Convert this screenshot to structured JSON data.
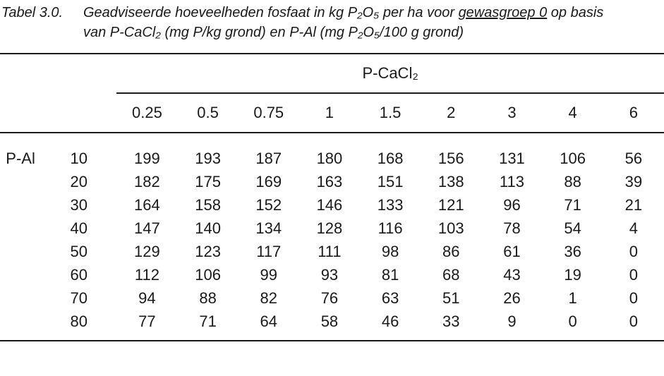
{
  "page": {
    "background_color": "#ffffff",
    "text_color": "#1a1a1a",
    "rule_color": "#1a1a1a"
  },
  "caption": {
    "label": "Tabel 3.0.",
    "line1_before": "Geadviseerde hoeveelheden fosfaat in kg P₂O₅ per ha voor ",
    "line1_underlined": "gewasgroep 0",
    "line1_after": " op basis",
    "line2": "van P-CaCl₂ (mg P/kg grond) en P-Al (mg P₂O₅/100 g grond)"
  },
  "table": {
    "column_group_header": "P-CaCl₂",
    "row_group_header": "P-Al",
    "col_headers": [
      "0.25",
      "0.5",
      "0.75",
      "1",
      "1.5",
      "2",
      "3",
      "4",
      "6"
    ],
    "rows": [
      {
        "label": "10",
        "values": [
          199,
          193,
          187,
          180,
          168,
          156,
          131,
          106,
          56
        ]
      },
      {
        "label": "20",
        "values": [
          182,
          175,
          169,
          163,
          151,
          138,
          113,
          88,
          39
        ]
      },
      {
        "label": "30",
        "values": [
          164,
          158,
          152,
          146,
          133,
          121,
          96,
          71,
          21
        ]
      },
      {
        "label": "40",
        "values": [
          147,
          140,
          134,
          128,
          116,
          103,
          78,
          54,
          4
        ]
      },
      {
        "label": "50",
        "values": [
          129,
          123,
          117,
          111,
          98,
          86,
          61,
          36,
          0
        ]
      },
      {
        "label": "60",
        "values": [
          112,
          106,
          99,
          93,
          81,
          68,
          43,
          19,
          0
        ]
      },
      {
        "label": "70",
        "values": [
          94,
          88,
          82,
          76,
          63,
          51,
          26,
          1,
          0
        ]
      },
      {
        "label": "80",
        "values": [
          77,
          71,
          64,
          58,
          46,
          33,
          9,
          0,
          0
        ]
      }
    ]
  }
}
